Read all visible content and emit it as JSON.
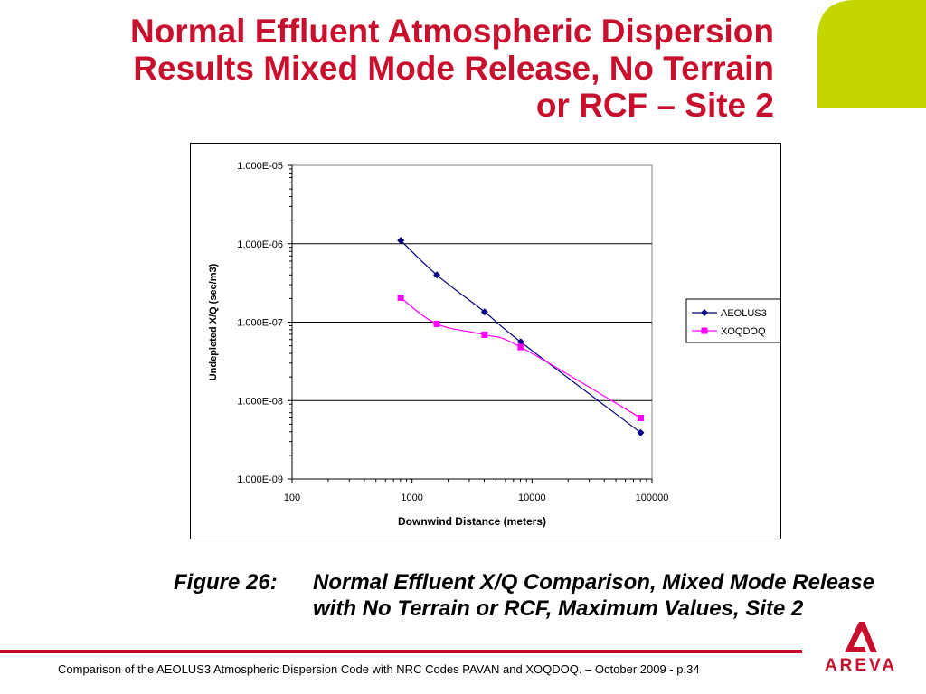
{
  "slide": {
    "title_lines": [
      "Normal Effluent Atmospheric Dispersion",
      "Results Mixed Mode Release, No Terrain",
      "or RCF – Site 2"
    ],
    "caption_label": "Figure 26:",
    "caption_text": "Normal Effluent X/Q Comparison, Mixed Mode Release with No Terrain or RCF, Maximum Values, Site 2",
    "footer": "Comparison of the AEOLUS3 Atmospheric Dispersion Code with NRC Codes PAVAN and XOQDOQ. – October 2009 - p.34",
    "logo_text": "AREVA",
    "colors": {
      "title": "#c8102e",
      "accent_shape": "#c4d600",
      "footer_rule": "#c8102e",
      "aeolus3": "#000080",
      "xoqdoq": "#ff00ff"
    }
  },
  "chart_data": {
    "type": "line",
    "title": "",
    "xlabel": "Downwind Distance (meters)",
    "ylabel": "Undepleted X/Q (sec/m3)",
    "x_scale": "log",
    "y_scale": "log",
    "xlim": [
      100,
      100000
    ],
    "ylim": [
      1e-09,
      1e-05
    ],
    "x_ticks": [
      "100",
      "1000",
      "10000",
      "100000"
    ],
    "y_ticks": [
      "1.000E-09",
      "1.000E-08",
      "1.000E-07",
      "1.000E-06",
      "1.000E-05"
    ],
    "grid": "horizontal major",
    "legend_position": "right",
    "series": [
      {
        "name": "AEOLUS3",
        "color": "#000080",
        "marker": "diamond",
        "x": [
          805,
          1609,
          4023,
          8047,
          80467
        ],
        "y": [
          1.1e-06,
          4e-07,
          1.35e-07,
          5.6e-08,
          3.9e-09
        ]
      },
      {
        "name": "XOQDOQ",
        "color": "#ff00ff",
        "marker": "square",
        "x": [
          805,
          1609,
          4023,
          8047,
          80467
        ],
        "y": [
          2.05e-07,
          9.5e-08,
          6.9e-08,
          4.8e-08,
          6e-09
        ]
      }
    ]
  }
}
